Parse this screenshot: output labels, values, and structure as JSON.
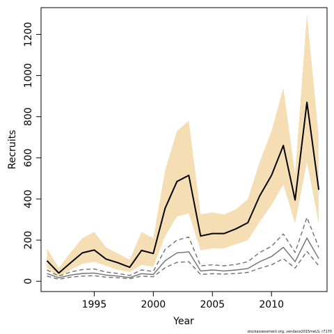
{
  "chart_data": {
    "type": "line",
    "xlabel": "Year",
    "ylabel": "Recruits",
    "xlim": [
      1990.5,
      2014.7
    ],
    "ylim": [
      -50,
      1330
    ],
    "xticks": [
      1995,
      2000,
      2005,
      2010
    ],
    "yticks": [
      0,
      200,
      400,
      600,
      800,
      1000,
      1200
    ],
    "grid": false,
    "legend": "none",
    "x": [
      1991,
      1992,
      1993,
      1994,
      1995,
      1996,
      1997,
      1998,
      1999,
      2000,
      2001,
      2002,
      2003,
      2004,
      2005,
      2006,
      2007,
      2008,
      2009,
      2010,
      2011,
      2012,
      2013,
      2014
    ],
    "band": {
      "color": "#f5deb3",
      "lower": [
        65,
        20,
        55,
        85,
        95,
        75,
        55,
        45,
        80,
        70,
        220,
        315,
        330,
        150,
        160,
        160,
        180,
        200,
        290,
        370,
        470,
        280,
        580,
        280
      ],
      "upper": [
        160,
        65,
        140,
        210,
        240,
        165,
        135,
        105,
        240,
        210,
        540,
        730,
        780,
        325,
        335,
        325,
        350,
        400,
        580,
        730,
        940,
        520,
        1300,
        700
      ]
    },
    "series": [
      {
        "role": "estimate",
        "color": "#000000",
        "dash": "solid",
        "width": 2,
        "values": [
          100,
          40,
          90,
          138,
          152,
          108,
          90,
          68,
          150,
          135,
          355,
          485,
          515,
          220,
          232,
          232,
          255,
          285,
          415,
          515,
          660,
          395,
          870,
          445
        ]
      },
      {
        "role": "secondary-upper",
        "color": "#6e6e6e",
        "dash": "dashed",
        "width": 1.4,
        "values": [
          55,
          25,
          45,
          57,
          60,
          45,
          38,
          28,
          55,
          48,
          155,
          200,
          215,
          75,
          80,
          75,
          82,
          95,
          140,
          170,
          230,
          140,
          310,
          165
        ]
      },
      {
        "role": "secondary-estimate",
        "color": "#6e6e6e",
        "dash": "solid",
        "width": 1.4,
        "values": [
          38,
          17,
          30,
          38,
          40,
          30,
          25,
          18,
          37,
          33,
          100,
          138,
          143,
          50,
          55,
          50,
          55,
          62,
          95,
          120,
          165,
          95,
          210,
          110
        ]
      },
      {
        "role": "secondary-lower",
        "color": "#6e6e6e",
        "dash": "dashed",
        "width": 1.4,
        "values": [
          25,
          10,
          20,
          25,
          27,
          20,
          17,
          12,
          25,
          22,
          66,
          92,
          95,
          33,
          37,
          35,
          38,
          43,
          63,
          80,
          110,
          64,
          145,
          75
        ]
      }
    ]
  },
  "footer": {
    "credit": "stockassessment.org,  vendace2015meLS,  r7170"
  }
}
